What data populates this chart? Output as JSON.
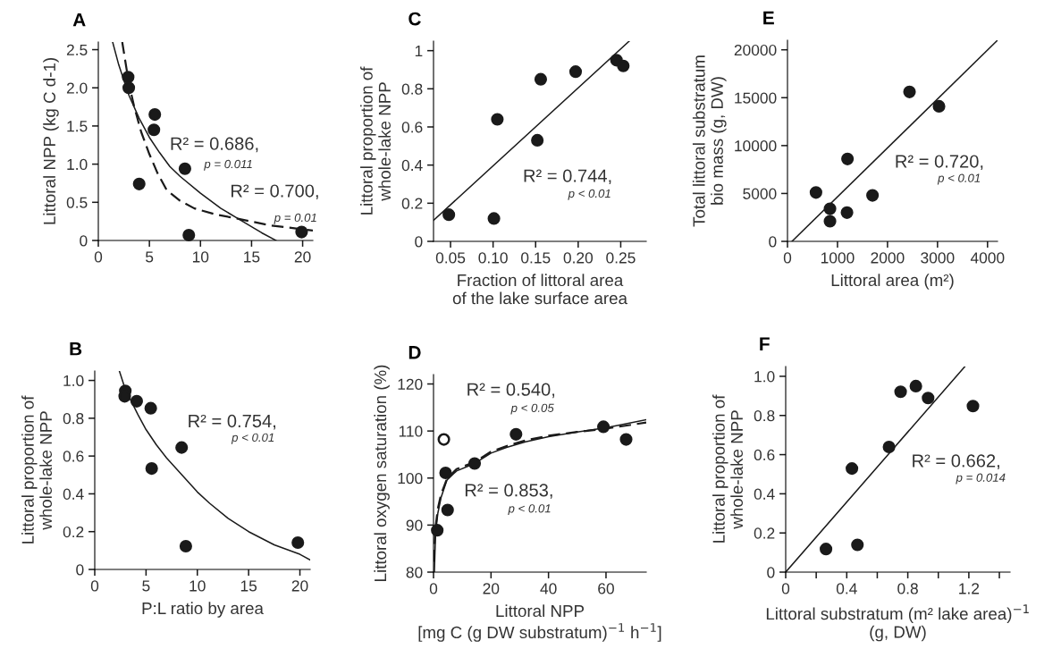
{
  "chart_data": [
    {
      "type": "scatter",
      "title": "A",
      "ylabel": "Littoral NPP (kg C d-1)",
      "xlim": [
        0,
        21
      ],
      "ylim": [
        0,
        2.6
      ],
      "xticks": [
        0,
        5,
        10,
        15,
        20
      ],
      "yticks": [
        0,
        {
          "value": 0.5,
          "label": "0.5"
        },
        {
          "value": 1.0,
          "label": "1.0"
        },
        {
          "value": 1.5,
          "label": "1.5"
        },
        {
          "value": 2.0,
          "label": "2.0"
        },
        {
          "value": 2.5,
          "label": "2.5"
        }
      ],
      "annotations": [
        "R² = 0.686,",
        "p = 0.011",
        "R² = 0.700,",
        "p = 0.01"
      ],
      "series": [
        {
          "marker": "circle",
          "color": "#1a1a1a",
          "x": [
            2.92,
            2.98,
            4.0,
            5.44,
            5.53,
            8.48,
            8.86,
            19.9
          ],
          "values": [
            2.14,
            2.0,
            0.74,
            1.45,
            1.65,
            0.94,
            0.07,
            0.11
          ]
        },
        {
          "type": "line",
          "marker": "none",
          "line_style": "solid",
          "color": "#1a1a1a",
          "x": [
            1.4,
            2,
            3,
            4,
            5,
            6,
            7,
            8,
            10,
            12,
            13.5,
            15,
            16,
            17.4
          ],
          "values": [
            2.6,
            2.3,
            1.9,
            1.6,
            1.35,
            1.15,
            0.97,
            0.84,
            0.62,
            0.42,
            0.3,
            0.18,
            0.1,
            0
          ]
        },
        {
          "type": "line",
          "marker": "none",
          "line_style": "dashed",
          "color": "#1a1a1a",
          "x": [
            2.34,
            3,
            3.5,
            4.2,
            5,
            5.8,
            6.7,
            8,
            9.4,
            11.5,
            13.5,
            16.7,
            21
          ],
          "values": [
            2.6,
            2.05,
            1.76,
            1.42,
            1.13,
            0.88,
            0.66,
            0.52,
            0.42,
            0.34,
            0.29,
            0.2,
            0.13
          ]
        }
      ]
    },
    {
      "type": "scatter",
      "title": "C",
      "ylabel": "Littoral proportion of\nwhole-lake NPP",
      "xlabel": "Fraction of littoral area\nof the lake surface area",
      "xlim": [
        0.03,
        0.28
      ],
      "ylim": [
        0,
        1.05
      ],
      "xticks": [
        0.05,
        {
          "value": 0.1,
          "label": "0.10"
        },
        0.15,
        {
          "value": 0.2,
          "label": "0.20"
        },
        0.25
      ],
      "yticks": [
        0,
        0.2,
        0.4,
        0.6,
        0.8,
        1
      ],
      "annotations": [
        "R² = 0.744,",
        "p < 0.01"
      ],
      "series": [
        {
          "marker": "circle",
          "color": "#1a1a1a",
          "x": [
            0.048,
            0.101,
            0.105,
            0.152,
            0.156,
            0.197,
            0.245,
            0.253
          ],
          "values": [
            0.14,
            0.12,
            0.64,
            0.53,
            0.85,
            0.89,
            0.95,
            0.92
          ]
        },
        {
          "type": "line",
          "marker": "none",
          "line_style": "solid",
          "color": "#1a1a1a",
          "x": [
            0.03,
            0.26
          ],
          "values": [
            0.11,
            1.05
          ]
        }
      ]
    },
    {
      "type": "scatter",
      "title": "E",
      "ylabel": "Total littoral substratum\nbio mass (g, DW)",
      "xlabel": "Littoral area (m²)",
      "xlim": [
        0,
        4200
      ],
      "ylim": [
        0,
        21000
      ],
      "xticks": [
        0,
        1000,
        2000,
        3000,
        4000
      ],
      "yticks": [
        0,
        5000,
        10000,
        15000,
        20000
      ],
      "annotations": [
        "R² = 0.720,",
        "p < 0.01"
      ],
      "series": [
        {
          "marker": "circle",
          "color": "#1a1a1a",
          "x": [
            570,
            850,
            850,
            1190,
            1200,
            1700,
            2440,
            3030
          ],
          "values": [
            5100,
            3400,
            2100,
            3000,
            8600,
            4800,
            15600,
            14100
          ]
        },
        {
          "type": "line",
          "marker": "none",
          "line_style": "solid",
          "color": "#1a1a1a",
          "x": [
            90,
            4200
          ],
          "values": [
            0,
            21000
          ]
        }
      ]
    },
    {
      "type": "scatter",
      "title": "B",
      "ylabel": "Littoral proportion of\nwhole-lake NPP",
      "xlabel": "P:L ratio by area",
      "xlim": [
        0,
        21
      ],
      "ylim": [
        0,
        1.05
      ],
      "xticks": [
        0,
        5,
        10,
        15,
        20
      ],
      "yticks": [
        0,
        0.2,
        0.4,
        0.6,
        0.8,
        {
          "value": 1.0,
          "label": "1.0"
        }
      ],
      "annotations": [
        "R² = 0.754,",
        "p < 0.01"
      ],
      "series": [
        {
          "marker": "circle",
          "color": "#1a1a1a",
          "x": [
            2.98,
            2.92,
            4.09,
            5.46,
            5.55,
            8.47,
            8.88,
            19.8
          ],
          "values": [
            0.945,
            0.916,
            0.89,
            0.853,
            0.534,
            0.645,
            0.123,
            0.142
          ]
        },
        {
          "type": "line",
          "marker": "none",
          "line_style": "solid",
          "color": "#1a1a1a",
          "x": [
            2.4,
            3,
            3.56,
            4.2,
            5,
            6,
            7,
            8.5,
            10,
            11.2,
            13,
            15,
            17.5,
            20,
            21
          ],
          "values": [
            1.05,
            0.95,
            0.89,
            0.82,
            0.74,
            0.66,
            0.59,
            0.5,
            0.41,
            0.35,
            0.27,
            0.2,
            0.13,
            0.08,
            0.05
          ]
        }
      ]
    },
    {
      "type": "scatter",
      "title": "D",
      "ylabel": "Littoral oxygen saturation (%)",
      "xlabel": "Littoral NPP\n[mg C (g DW substratum)$^{−1}$ h$^{−1}$]",
      "xlim": [
        0,
        74
      ],
      "ylim": [
        80,
        122
      ],
      "xticks": [
        0,
        20,
        40,
        60
      ],
      "yticks": [
        80,
        90,
        100,
        110,
        120
      ],
      "annotations": [
        "R² = 0.540,",
        "p < 0.05",
        "R² = 0.853,",
        "p < 0.01"
      ],
      "series": [
        {
          "marker": "circle",
          "color": "#1a1a1a",
          "x": [
            1.3,
            4.2,
            4.9,
            14.3,
            28.7,
            59.1,
            67
          ],
          "values": [
            88.9,
            101.1,
            93.2,
            103.1,
            109.3,
            110.9,
            108.2
          ]
        },
        {
          "marker": "circle",
          "color": "#ffffff",
          "x": [
            3.6
          ],
          "values": [
            108.2
          ]
        },
        {
          "type": "line",
          "marker": "none",
          "line_style": "solid",
          "color": "#1a1a1a",
          "x": [
            0.3,
            0.7,
            1.5,
            2.6,
            4.7,
            8,
            14.3,
            20,
            25.4,
            32,
            40,
            50,
            60,
            74
          ],
          "values": [
            80,
            88.2,
            92.5,
            95.8,
            99.6,
            101.5,
            103.1,
            105.3,
            106.5,
            107.7,
            108.8,
            109.8,
            110.7,
            112.4
          ]
        },
        {
          "type": "line",
          "marker": "none",
          "line_style": "dashed",
          "color": "#1a1a1a",
          "x": [
            0,
            0.7,
            1.5,
            2.6,
            4.7,
            8,
            14.3,
            20,
            25.4,
            32,
            40,
            50,
            60,
            74
          ],
          "values": [
            82.2,
            89.5,
            93.5,
            96.5,
            99.9,
            101.9,
            103.4,
            105.6,
            106.8,
            108,
            109,
            109.8,
            110.5,
            111.8
          ]
        }
      ]
    },
    {
      "type": "scatter",
      "title": "F",
      "ylabel": "Littoral proportion of\nwhole-lake NPP",
      "xlabel": "Littoral substratum (m² lake area)$^{−1}$\n(g, DW)",
      "xlim": [
        0,
        1.47
      ],
      "ylim": [
        0,
        1.05
      ],
      "xticks": [
        0,
        {
          "value": 0.2,
          "label": null
        },
        0.4,
        {
          "value": 0.6,
          "label": null
        },
        0.8,
        {
          "value": 1.0,
          "label": null
        },
        1.2,
        {
          "value": 1.4,
          "label": null
        }
      ],
      "yticks": [
        0,
        0.2,
        0.4,
        0.6,
        0.8,
        {
          "value": 1.0,
          "label": "1.0"
        }
      ],
      "annotations": [
        "R² = 0.662,",
        "p = 0.014"
      ],
      "series": [
        {
          "marker": "circle",
          "color": "#1a1a1a",
          "x": [
            0.264,
            0.47,
            0.434,
            0.677,
            0.753,
            0.853,
            0.933,
            1.227
          ],
          "values": [
            0.118,
            0.139,
            0.529,
            0.639,
            0.921,
            0.95,
            0.889,
            0.848
          ]
        },
        {
          "type": "line",
          "marker": "none",
          "line_style": "solid",
          "color": "#1a1a1a",
          "x": [
            0,
            1.174
          ],
          "values": [
            0,
            1.05
          ]
        }
      ]
    }
  ]
}
